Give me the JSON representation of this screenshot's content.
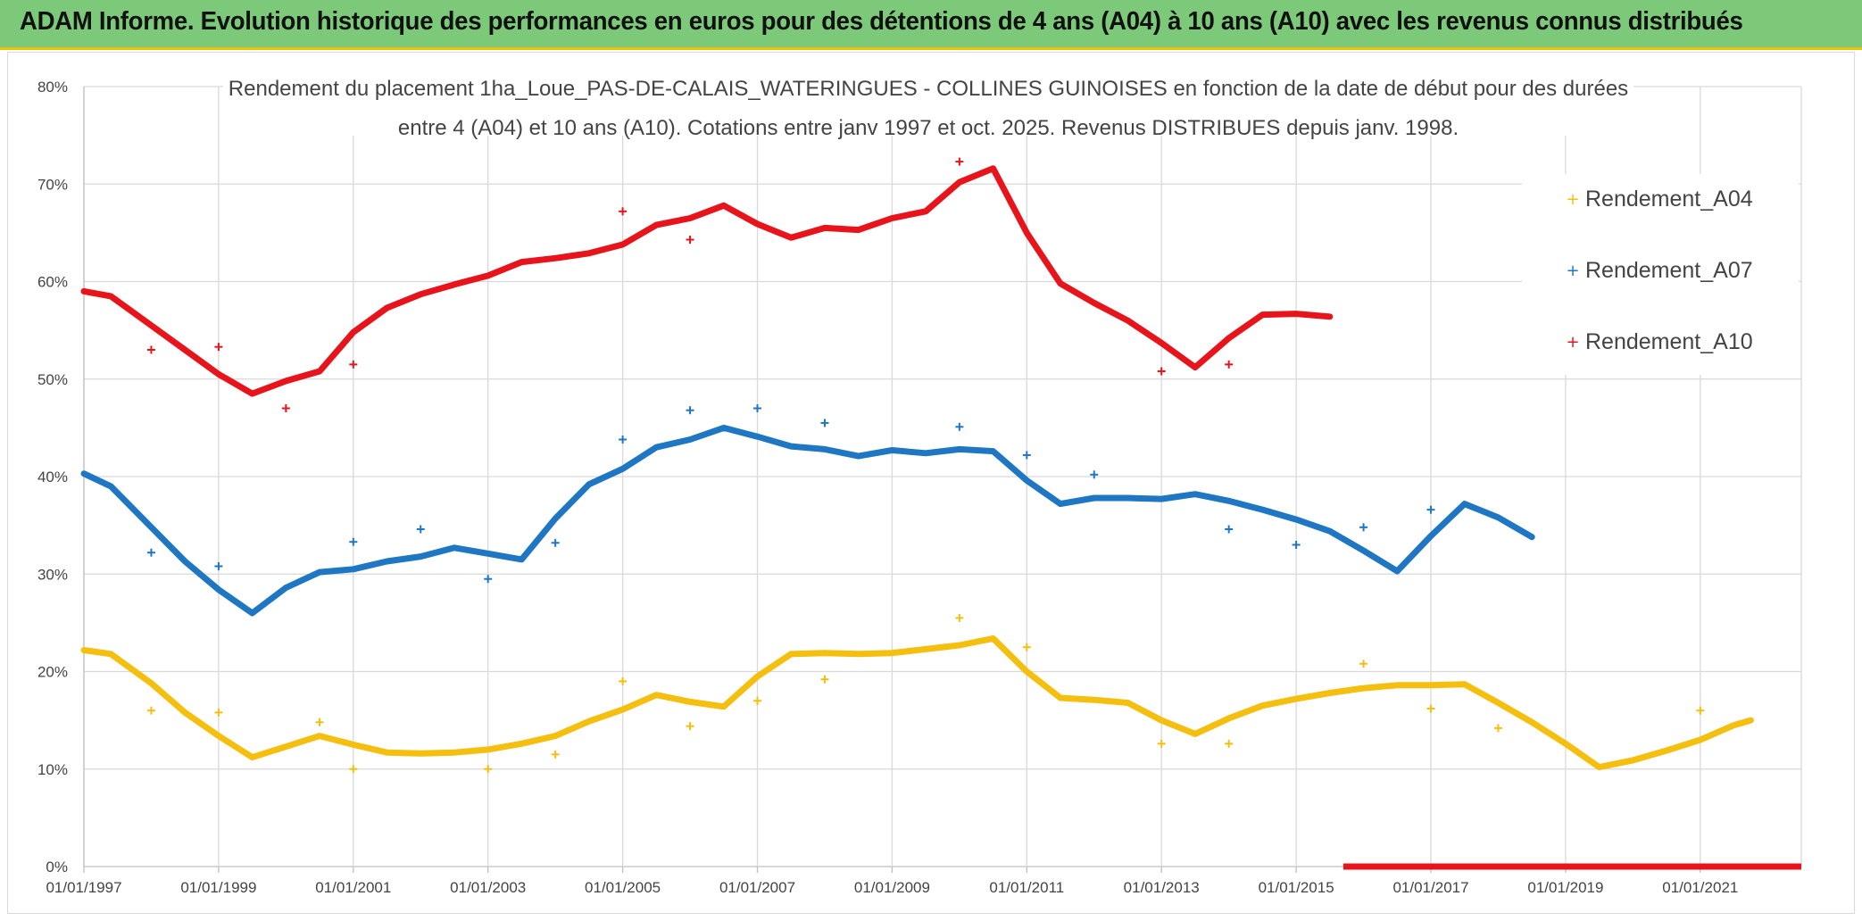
{
  "banner": {
    "title": "ADAM Informe. Evolution historique des performances en euros pour des détentions de 4 ans (A04) à 10 ans (A10) avec les revenus connus distribués"
  },
  "chart_data": {
    "type": "line",
    "title_lines": [
      "Rendement du placement 1ha_Loue_PAS-DE-CALAIS_WATERINGUES - COLLINES GUINOISES en fonction de la date de début pour des durées",
      "entre 4 (A04) et 10 ans (A10). Cotations entre janv 1997 et oct. 2025. Revenus DISTRIBUES depuis janv. 1998."
    ],
    "xlabel": "",
    "ylabel": "",
    "xlim": [
      1997.0,
      2022.5
    ],
    "ylim": [
      0,
      80
    ],
    "x_ticks": [
      "01/01/1997",
      "01/01/1999",
      "01/01/2001",
      "01/01/2003",
      "01/01/2005",
      "01/01/2007",
      "01/01/2009",
      "01/01/2011",
      "01/01/2013",
      "01/01/2015",
      "01/01/2017",
      "01/01/2019",
      "01/01/2021"
    ],
    "y_ticks": [
      "0%",
      "10%",
      "20%",
      "30%",
      "40%",
      "50%",
      "60%",
      "70%",
      "80%"
    ],
    "grid": true,
    "legend_position": "right",
    "series": [
      {
        "name": "Rendement_A04",
        "color": "#f5bf0f",
        "x": [
          1997.0,
          1997.4,
          1998.0,
          1998.5,
          1999.0,
          1999.5,
          2000.0,
          2000.5,
          2001.0,
          2001.5,
          2002.0,
          2002.5,
          2003.0,
          2003.5,
          2004.0,
          2004.5,
          2005.0,
          2005.5,
          2006.0,
          2006.5,
          2007.0,
          2007.5,
          2008.0,
          2008.5,
          2009.0,
          2009.5,
          2010.0,
          2010.5,
          2011.0,
          2011.5,
          2012.0,
          2012.5,
          2013.0,
          2013.5,
          2014.0,
          2014.5,
          2015.0,
          2015.5,
          2016.0,
          2016.5,
          2017.0,
          2017.5,
          2018.0,
          2018.5,
          2019.0,
          2019.5,
          2020.0,
          2020.5,
          2021.0,
          2021.5,
          2021.75
        ],
        "values": [
          22.2,
          21.8,
          18.8,
          15.8,
          13.4,
          11.2,
          12.3,
          13.4,
          12.5,
          11.7,
          11.6,
          11.7,
          12.0,
          12.6,
          13.4,
          14.9,
          16.1,
          17.6,
          16.9,
          16.4,
          19.5,
          21.8,
          21.9,
          21.8,
          21.9,
          22.3,
          22.7,
          23.4,
          20.0,
          17.3,
          17.1,
          16.8,
          15.0,
          13.6,
          15.2,
          16.5,
          17.2,
          17.8,
          18.3,
          18.6,
          18.6,
          18.7,
          16.8,
          14.8,
          12.6,
          10.2,
          10.9,
          11.9,
          13.0,
          14.5,
          15.0
        ]
      },
      {
        "name": "Rendement_A07",
        "color": "#1f77c4",
        "x": [
          1997.0,
          1997.4,
          1998.0,
          1998.5,
          1999.0,
          1999.5,
          2000.0,
          2000.5,
          2001.0,
          2001.5,
          2002.0,
          2002.5,
          2003.0,
          2003.5,
          2004.0,
          2004.5,
          2005.0,
          2005.5,
          2006.0,
          2006.5,
          2007.0,
          2007.5,
          2008.0,
          2008.5,
          2009.0,
          2009.5,
          2010.0,
          2010.5,
          2011.0,
          2011.5,
          2012.0,
          2012.5,
          2013.0,
          2013.5,
          2014.0,
          2014.5,
          2015.0,
          2015.5,
          2016.0,
          2016.5,
          2017.0,
          2017.5,
          2018.0,
          2018.5
        ],
        "values": [
          40.3,
          39.0,
          34.8,
          31.3,
          28.4,
          26.0,
          28.6,
          30.2,
          30.5,
          31.3,
          31.8,
          32.7,
          32.1,
          31.5,
          35.7,
          39.2,
          40.8,
          43.0,
          43.8,
          45.0,
          44.1,
          43.1,
          42.8,
          42.1,
          42.7,
          42.4,
          42.8,
          42.6,
          39.6,
          37.2,
          37.8,
          37.8,
          37.7,
          38.2,
          37.5,
          36.6,
          35.6,
          34.4,
          32.4,
          30.3,
          33.9,
          37.2,
          35.8,
          33.8
        ]
      },
      {
        "name": "Rendement_A10",
        "color": "#e8141b",
        "x": [
          1997.0,
          1997.4,
          1998.0,
          1998.5,
          1999.0,
          1999.5,
          2000.0,
          2000.5,
          2001.0,
          2001.5,
          2002.0,
          2002.5,
          2003.0,
          2003.5,
          2004.0,
          2004.5,
          2005.0,
          2005.5,
          2006.0,
          2006.5,
          2007.0,
          2007.5,
          2008.0,
          2008.5,
          2009.0,
          2009.5,
          2010.0,
          2010.5,
          2011.0,
          2011.5,
          2012.0,
          2012.5,
          2013.0,
          2013.5,
          2014.0,
          2014.5,
          2015.0,
          2015.5
        ],
        "values": [
          59.0,
          58.5,
          55.5,
          53.0,
          50.5,
          48.5,
          49.8,
          50.8,
          54.8,
          57.3,
          58.7,
          59.7,
          60.6,
          62.0,
          62.4,
          62.9,
          63.8,
          65.8,
          66.5,
          67.8,
          65.9,
          64.5,
          65.5,
          65.3,
          66.5,
          67.2,
          70.2,
          71.6,
          65.0,
          59.8,
          57.8,
          56.0,
          53.7,
          51.2,
          54.2,
          56.6,
          56.7,
          56.4
        ]
      }
    ],
    "scatter_A04": [
      [
        1998.0,
        16.0
      ],
      [
        1999.0,
        15.8
      ],
      [
        2000.5,
        14.8
      ],
      [
        2001.0,
        10.0
      ],
      [
        2003.0,
        10.0
      ],
      [
        2004.0,
        11.5
      ],
      [
        2005.0,
        19.0
      ],
      [
        2006.0,
        14.4
      ],
      [
        2007.0,
        17.0
      ],
      [
        2008.0,
        19.2
      ],
      [
        2010.0,
        25.5
      ],
      [
        2011.0,
        22.5
      ],
      [
        2013.0,
        12.6
      ],
      [
        2014.0,
        12.6
      ],
      [
        2016.0,
        20.8
      ],
      [
        2017.0,
        16.2
      ],
      [
        2018.0,
        14.2
      ],
      [
        2021.0,
        16.0
      ]
    ],
    "scatter_A07": [
      [
        1998.0,
        32.2
      ],
      [
        1999.0,
        30.8
      ],
      [
        2001.0,
        33.3
      ],
      [
        2002.0,
        34.6
      ],
      [
        2003.0,
        29.5
      ],
      [
        2004.0,
        33.2
      ],
      [
        2005.0,
        43.8
      ],
      [
        2006.0,
        46.8
      ],
      [
        2007.0,
        47.0
      ],
      [
        2008.0,
        45.5
      ],
      [
        2010.0,
        45.1
      ],
      [
        2011.0,
        42.2
      ],
      [
        2012.0,
        40.2
      ],
      [
        2014.0,
        34.6
      ],
      [
        2015.0,
        33.0
      ],
      [
        2016.0,
        34.8
      ],
      [
        2017.0,
        36.6
      ]
    ],
    "scatter_A10": [
      [
        1998.0,
        53.0
      ],
      [
        1999.0,
        53.3
      ],
      [
        2000.0,
        47.0
      ],
      [
        2001.0,
        51.5
      ],
      [
        2005.0,
        67.2
      ],
      [
        2006.0,
        64.3
      ],
      [
        2010.0,
        72.3
      ],
      [
        2013.0,
        50.8
      ],
      [
        2014.0,
        51.5
      ]
    ],
    "baseline_A10_zero": {
      "x_start": 2015.7,
      "x_end": 2022.5,
      "value": 0
    }
  }
}
